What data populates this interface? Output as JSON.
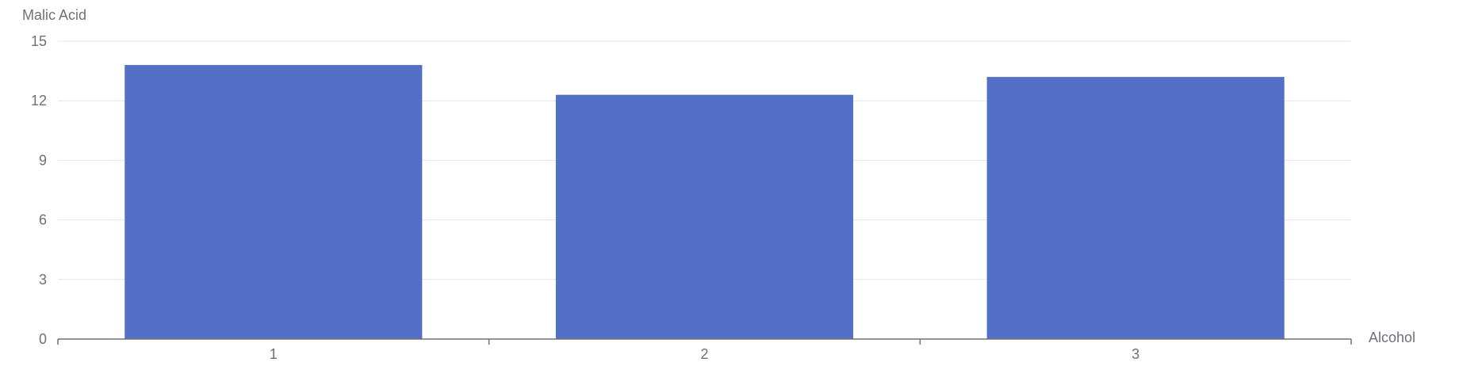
{
  "chart_data": {
    "type": "bar",
    "categories": [
      "1",
      "2",
      "3"
    ],
    "values": [
      13.8,
      12.3,
      13.2
    ],
    "xlabel": "Alcohol",
    "ylabel": "Malic Acid",
    "ylim": [
      0,
      15
    ],
    "yticks": [
      "0",
      "3",
      "6",
      "9",
      "12",
      "15"
    ],
    "grid": true,
    "legend": "none",
    "colors": {
      "bar": "#5470c6",
      "grid": "#e0e6f1",
      "axis": "#6e7079",
      "text": "#6e7079"
    }
  }
}
